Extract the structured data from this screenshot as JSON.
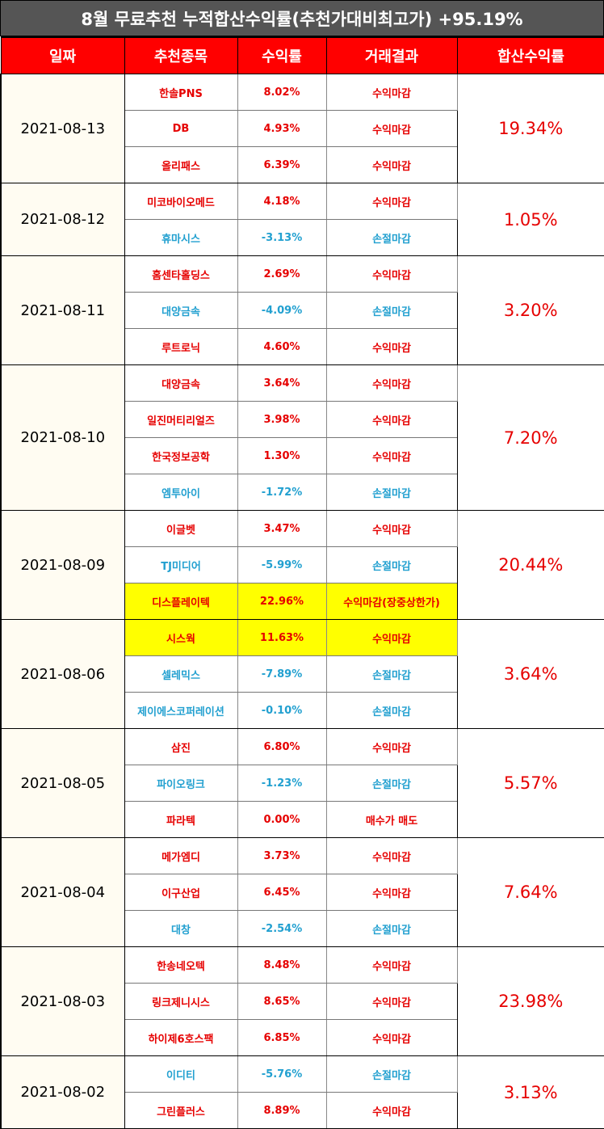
{
  "title": "8월 무료추천 누적합산수익률(추천가대비최고가) +95.19%",
  "headers": {
    "date": "일짜",
    "stock": "추천종목",
    "rate": "수익률",
    "result": "거래결과",
    "total": "합산수익률"
  },
  "colors": {
    "header_bg": "#ff0000",
    "gain": "#e60000",
    "loss": "#22a0d0",
    "highlight": "#ffff00",
    "banner_bg": "#555555"
  },
  "groups": [
    {
      "date": "2021-08-13",
      "total": "19.34%",
      "rows": [
        {
          "name": "한솔PNS",
          "rate": "8.02%",
          "result": "수익마감",
          "type": "gain"
        },
        {
          "name": "DB",
          "rate": "4.93%",
          "result": "수익마감",
          "type": "gain"
        },
        {
          "name": "올리패스",
          "rate": "6.39%",
          "result": "수익마감",
          "type": "gain"
        }
      ]
    },
    {
      "date": "2021-08-12",
      "total": "1.05%",
      "rows": [
        {
          "name": "미코바이오메드",
          "rate": "4.18%",
          "result": "수익마감",
          "type": "gain"
        },
        {
          "name": "휴마시스",
          "rate": "-3.13%",
          "result": "손절마감",
          "type": "loss"
        }
      ]
    },
    {
      "date": "2021-08-11",
      "total": "3.20%",
      "rows": [
        {
          "name": "홈센타홀딩스",
          "rate": "2.69%",
          "result": "수익마감",
          "type": "gain"
        },
        {
          "name": "대양금속",
          "rate": "-4.09%",
          "result": "손절마감",
          "type": "loss"
        },
        {
          "name": "루트로닉",
          "rate": "4.60%",
          "result": "수익마감",
          "type": "gain"
        }
      ]
    },
    {
      "date": "2021-08-10",
      "total": "7.20%",
      "rows": [
        {
          "name": "대양금속",
          "rate": "3.64%",
          "result": "수익마감",
          "type": "gain"
        },
        {
          "name": "일진머티리얼즈",
          "rate": "3.98%",
          "result": "수익마감",
          "type": "gain"
        },
        {
          "name": "한국정보공학",
          "rate": "1.30%",
          "result": "수익마감",
          "type": "gain"
        },
        {
          "name": "엠투아이",
          "rate": "-1.72%",
          "result": "손절마감",
          "type": "loss"
        }
      ]
    },
    {
      "date": "2021-08-09",
      "total": "20.44%",
      "rows": [
        {
          "name": "이글벳",
          "rate": "3.47%",
          "result": "수익마감",
          "type": "gain"
        },
        {
          "name": "TJ미디어",
          "rate": "-5.99%",
          "result": "손절마감",
          "type": "loss"
        },
        {
          "name": "디스플레이텍",
          "rate": "22.96%",
          "result": "수익마감(장중상한가)",
          "type": "gain",
          "highlight": true
        }
      ]
    },
    {
      "date": "2021-08-06",
      "total": "3.64%",
      "rows": [
        {
          "name": "시스웍",
          "rate": "11.63%",
          "result": "수익마감",
          "type": "gain",
          "highlight": true
        },
        {
          "name": "셀레믹스",
          "rate": "-7.89%",
          "result": "손절마감",
          "type": "loss"
        },
        {
          "name": "제이에스코퍼레이션",
          "rate": "-0.10%",
          "result": "손절마감",
          "type": "loss"
        }
      ]
    },
    {
      "date": "2021-08-05",
      "total": "5.57%",
      "rows": [
        {
          "name": "삼진",
          "rate": "6.80%",
          "result": "수익마감",
          "type": "gain"
        },
        {
          "name": "파이오링크",
          "rate": "-1.23%",
          "result": "손절마감",
          "type": "loss"
        },
        {
          "name": "파라텍",
          "rate": "0.00%",
          "result": "매수가 매도",
          "type": "gain"
        }
      ]
    },
    {
      "date": "2021-08-04",
      "total": "7.64%",
      "rows": [
        {
          "name": "메가엠디",
          "rate": "3.73%",
          "result": "수익마감",
          "type": "gain"
        },
        {
          "name": "이구산업",
          "rate": "6.45%",
          "result": "수익마감",
          "type": "gain"
        },
        {
          "name": "대창",
          "rate": "-2.54%",
          "result": "손절마감",
          "type": "loss"
        }
      ]
    },
    {
      "date": "2021-08-03",
      "total": "23.98%",
      "rows": [
        {
          "name": "한송네오텍",
          "rate": "8.48%",
          "result": "수익마감",
          "type": "gain"
        },
        {
          "name": "링크제니시스",
          "rate": "8.65%",
          "result": "수익마감",
          "type": "gain"
        },
        {
          "name": "하이제6호스팩",
          "rate": "6.85%",
          "result": "수익마감",
          "type": "gain"
        }
      ]
    },
    {
      "date": "2021-08-02",
      "total": "3.13%",
      "rows": [
        {
          "name": "이디티",
          "rate": "-5.76%",
          "result": "손절마감",
          "type": "loss"
        },
        {
          "name": "그린플러스",
          "rate": "8.89%",
          "result": "수익마감",
          "type": "gain"
        }
      ]
    }
  ]
}
